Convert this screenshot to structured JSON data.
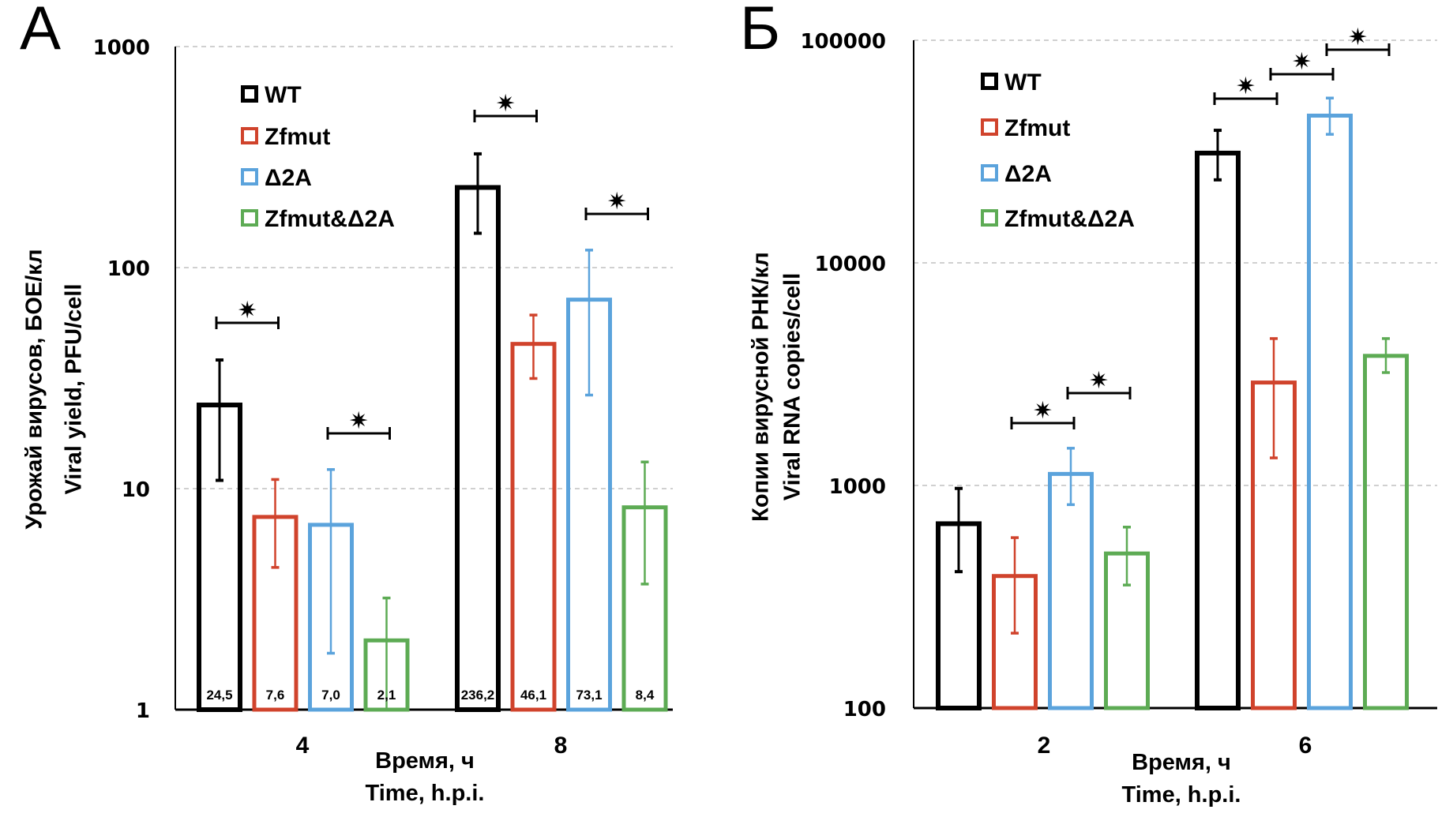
{
  "colors": {
    "WT": "#000000",
    "Zfmut": "#d0432c",
    "Δ2A": "#5ba3dc",
    "Zfmut&Δ2A": "#5dab54",
    "grid": "#b5b5b5"
  },
  "chart_data": [
    {
      "panel": "A",
      "type": "bar",
      "yscale": "log",
      "ylim": [
        1,
        1000
      ],
      "yticks": [
        "1",
        "10",
        "100",
        "1000"
      ],
      "grid": true,
      "ylabel_lines": [
        "Урожай вирусов, БОЕ/кл",
        "Viral yield, PFU/cell"
      ],
      "xlabel_lines": [
        "Время, ч",
        "Time, h.p.i."
      ],
      "categories": [
        "4",
        "8"
      ],
      "legend": [
        "WT",
        "Zfmut",
        "Δ2A",
        "Zfmut&Δ2A"
      ],
      "legend_position": "top-left",
      "series": [
        {
          "name": "WT",
          "values": [
            24.5,
            236.2
          ],
          "err_low": [
            10.9,
            143
          ],
          "err_high": [
            38.2,
            327
          ],
          "labels": [
            "24,5",
            "236,2"
          ]
        },
        {
          "name": "Zfmut",
          "values": [
            7.6,
            46.1
          ],
          "err_low": [
            4.4,
            31.5
          ],
          "err_high": [
            11.0,
            61
          ],
          "labels": [
            "7,6",
            "46,1"
          ]
        },
        {
          "name": "Δ2A",
          "values": [
            7.0,
            73.1
          ],
          "err_low": [
            1.8,
            26.5
          ],
          "err_high": [
            12.2,
            120
          ],
          "labels": [
            "7,0",
            "73,1"
          ]
        },
        {
          "name": "Zfmut&Δ2A",
          "values": [
            2.1,
            8.4
          ],
          "err_low": [
            1.0,
            3.7
          ],
          "err_high": [
            3.2,
            13.2
          ],
          "labels": [
            "2,1",
            "8,4"
          ]
        }
      ],
      "significance": [
        {
          "category": "4",
          "from": "WT",
          "to": "Zfmut",
          "level": 1,
          "marker": "✷"
        },
        {
          "category": "4",
          "from": "Δ2A",
          "to": "Zfmut&Δ2A",
          "level": 1,
          "marker": "✷"
        },
        {
          "category": "8",
          "from": "WT",
          "to": "Zfmut",
          "level": 1,
          "marker": "✷"
        },
        {
          "category": "8",
          "from": "Δ2A",
          "to": "Zfmut&Δ2A",
          "level": 1,
          "marker": "✷"
        }
      ]
    },
    {
      "panel": "Б",
      "type": "bar",
      "yscale": "log",
      "ylim": [
        100,
        100000
      ],
      "yticks": [
        "100",
        "1000",
        "10000",
        "100000"
      ],
      "grid": true,
      "ylabel_lines": [
        "Копии вирусной РНК/кл",
        "Viral RNA copies/cell"
      ],
      "xlabel_lines": [
        "Время, ч",
        "Time, h.p.i."
      ],
      "categories": [
        "2",
        "6"
      ],
      "legend": [
        "WT",
        "Zfmut",
        "Δ2A",
        "Zfmut&Δ2A"
      ],
      "legend_position": "top-left",
      "series": [
        {
          "name": "WT",
          "values": [
            690,
            31900
          ],
          "err_low": [
            410,
            23600
          ],
          "err_high": [
            970,
            39400
          ]
        },
        {
          "name": "Zfmut",
          "values": [
            400,
            2960
          ],
          "err_low": [
            217,
            1330
          ],
          "err_high": [
            583,
            4570
          ]
        },
        {
          "name": "Δ2A",
          "values": [
            1150,
            46800
          ],
          "err_low": [
            820,
            37800
          ],
          "err_high": [
            1470,
            55000
          ]
        },
        {
          "name": "Zfmut&Δ2A",
          "values": [
            505,
            3900
          ],
          "err_low": [
            357,
            3215
          ],
          "err_high": [
            650,
            4570
          ]
        }
      ],
      "significance": [
        {
          "category": "2",
          "from": "Zfmut",
          "to": "Δ2A",
          "level": 1,
          "marker": "✷"
        },
        {
          "category": "2",
          "from": "Δ2A",
          "to": "Zfmut&Δ2A",
          "level": 2,
          "marker": "✷"
        },
        {
          "category": "6",
          "from": "WT",
          "to": "Zfmut",
          "level": 1,
          "marker": "✷"
        },
        {
          "category": "6",
          "from": "Zfmut",
          "to": "Δ2A",
          "level": 2,
          "marker": "✷"
        },
        {
          "category": "6",
          "from": "Δ2A",
          "to": "Zfmut&Δ2A",
          "level": 3,
          "marker": "✷"
        }
      ]
    }
  ]
}
